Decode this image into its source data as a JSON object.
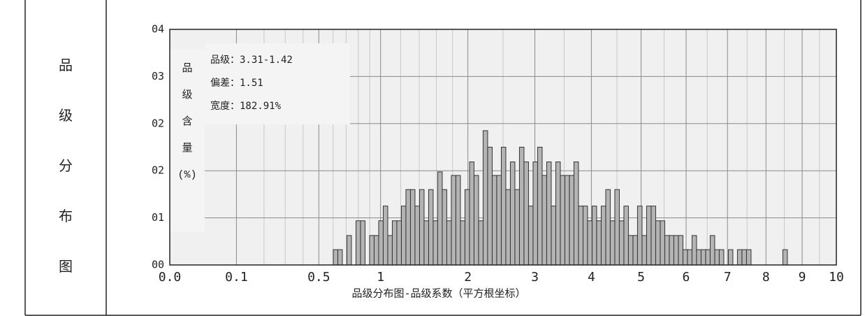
{
  "row_label": "品级分布图",
  "chart_data": {
    "type": "histogram",
    "xlabel": "品级分布图-品级系数（平方根坐标）",
    "ylabel": "品级含量(%)",
    "annotations": [
      "品级：3.31-1.42",
      "偏差：1.51",
      "宽度：182.91%"
    ],
    "xscale": "sqrt",
    "xlim": [
      0,
      10
    ],
    "xticks": [
      {
        "value": 0,
        "label": "0.0"
      },
      0.1,
      0.5,
      1,
      2,
      3,
      4,
      5,
      6,
      7,
      8,
      9,
      10
    ],
    "minor_xticks": [
      0.2,
      0.3,
      0.4,
      0.6,
      0.7,
      0.8,
      0.9,
      1.2,
      1.4,
      1.6,
      1.8,
      2.5,
      3.5,
      4.5,
      5.5,
      6.5,
      7.5,
      8.5,
      9.5
    ],
    "ylim": [
      0,
      4
    ],
    "yticks": [
      {
        "value": 0,
        "label": "00"
      },
      {
        "value": 0.8,
        "label": "01"
      },
      {
        "value": 1.6,
        "label": "02"
      },
      {
        "value": 2.4,
        "label": "02"
      },
      {
        "value": 3.2,
        "label": "03"
      },
      {
        "value": 4.0,
        "label": "04"
      }
    ],
    "grid": true,
    "color": "#b4b4b4",
    "bins": [
      0.6015,
      0.6354,
      0.6702,
      0.7059,
      0.7425,
      0.7802,
      0.8187,
      0.8582,
      0.8985,
      0.9398,
      0.9821,
      1.0252,
      1.0693,
      1.1143,
      1.1603,
      1.2071,
      1.2549,
      1.3037,
      1.3533,
      1.404,
      1.4554,
      1.508,
      1.5613,
      1.6157,
      1.6708,
      1.7269,
      1.7841,
      1.842,
      1.9011,
      1.9608,
      2.0218,
      2.0834,
      2.1462,
      2.2097,
      2.2741,
      2.3397,
      2.4059,
      2.4734,
      2.5415,
      2.6108,
      2.6807,
      2.7519,
      2.8237,
      2.8965,
      2.9705,
      3.045,
      3.1209,
      3.1973,
      3.275,
      3.3533,
      3.4329,
      3.513,
      3.5941,
      3.6764,
      3.7593,
      3.8436,
      3.9283,
      4.0144,
      4.101,
      4.189,
      4.2775,
      4.3668,
      4.4576,
      4.5488,
      4.6414,
      4.7345,
      4.829,
      4.924,
      5.0203,
      5.1171,
      5.2148,
      5.3139,
      5.4135,
      5.5145,
      5.616,
      5.7188,
      5.8221,
      5.9268,
      6.0319,
      6.138,
      6.2455,
      6.3534,
      6.4628,
      6.5726,
      6.6838,
      6.7954,
      6.9085,
      7.022,
      7.1364,
      7.2522,
      7.3685,
      7.4862,
      7.6044,
      7.724,
      7.8439,
      7.9654,
      8.0872,
      8.2105,
      8.3342,
      8.4588,
      8.5849
    ],
    "values": [
      0.26,
      0.26,
      0,
      0.5,
      0,
      0.75,
      0.75,
      0,
      0.5,
      0.5,
      0.75,
      1.0,
      0.5,
      0.75,
      0.75,
      1.0,
      1.28,
      1.28,
      1.0,
      1.28,
      0.75,
      1.28,
      0.75,
      1.58,
      1.28,
      0.75,
      1.52,
      1.52,
      0.75,
      1.28,
      1.75,
      1.52,
      0.75,
      2.28,
      2.0,
      1.52,
      1.52,
      2.0,
      1.28,
      1.75,
      1.28,
      2.0,
      1.75,
      1.0,
      1.75,
      2.0,
      1.52,
      1.75,
      1.0,
      1.75,
      1.52,
      1.52,
      1.52,
      1.75,
      1.0,
      1.0,
      0.75,
      1.0,
      0.75,
      1.0,
      1.28,
      0.75,
      1.28,
      0.75,
      1.0,
      0.5,
      0.5,
      1.0,
      0.5,
      1.0,
      1.0,
      0.75,
      0.75,
      0.5,
      0.5,
      0.5,
      0.5,
      0.26,
      0.26,
      0.5,
      0.26,
      0.26,
      0.26,
      0.5,
      0.26,
      0.26,
      0,
      0.26,
      0,
      0.26,
      0.26,
      0.26,
      0,
      0,
      0,
      0,
      0,
      0,
      0,
      0.26
    ]
  }
}
